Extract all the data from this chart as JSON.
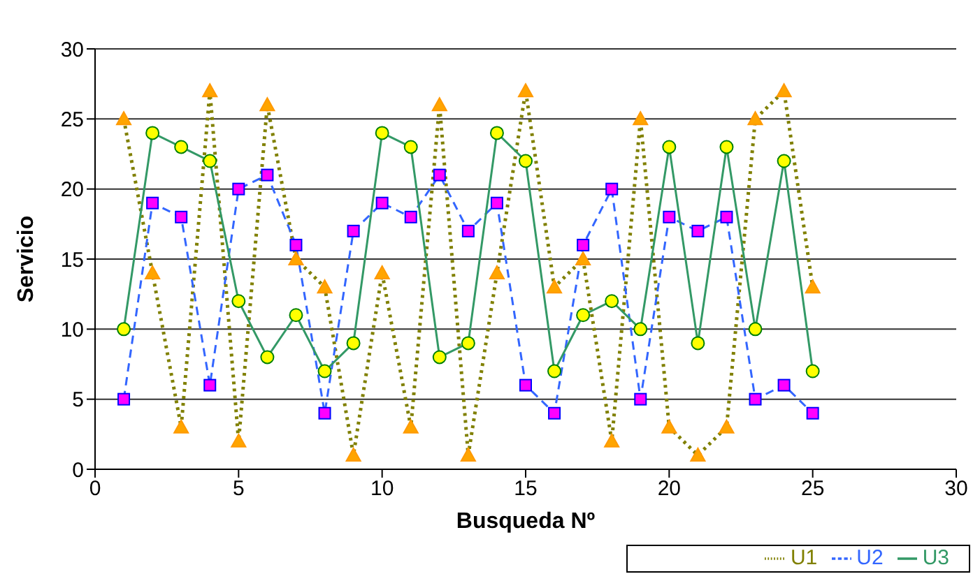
{
  "chart_data": {
    "type": "line",
    "xlabel": "Busqueda Nº",
    "ylabel": "Servicio",
    "x": [
      1,
      2,
      3,
      4,
      5,
      6,
      7,
      8,
      9,
      10,
      11,
      12,
      13,
      14,
      15,
      16,
      17,
      18,
      19,
      20,
      21,
      22,
      23,
      24,
      25
    ],
    "xlim": [
      0,
      30
    ],
    "xticks": [
      0,
      5,
      10,
      15,
      20,
      25,
      30
    ],
    "ylim": [
      0,
      30
    ],
    "yticks": [
      0,
      5,
      10,
      15,
      20,
      25,
      30
    ],
    "grid": "y",
    "legend": "bottom right",
    "series": [
      {
        "name": "U1",
        "color": "#808000",
        "marker": "triangle",
        "line_style": "dotted",
        "values": [
          25,
          14,
          3,
          27,
          2,
          26,
          15,
          13,
          1,
          14,
          3,
          26,
          1,
          14,
          27,
          13,
          15,
          2,
          25,
          3,
          1,
          3,
          25,
          27,
          13
        ]
      },
      {
        "name": "U2",
        "color": "#3366ff",
        "marker": "square",
        "line_style": "dashed",
        "values": [
          5,
          19,
          18,
          6,
          20,
          21,
          16,
          4,
          17,
          19,
          18,
          21,
          17,
          19,
          6,
          4,
          16,
          20,
          5,
          18,
          17,
          18,
          5,
          6,
          4
        ]
      },
      {
        "name": "U3",
        "color": "#339966",
        "marker": "circle",
        "line_style": "solid",
        "values": [
          10,
          24,
          23,
          22,
          12,
          8,
          11,
          7,
          9,
          24,
          23,
          8,
          9,
          24,
          22,
          7,
          11,
          12,
          10,
          23,
          9,
          23,
          10,
          22,
          7
        ]
      }
    ]
  }
}
